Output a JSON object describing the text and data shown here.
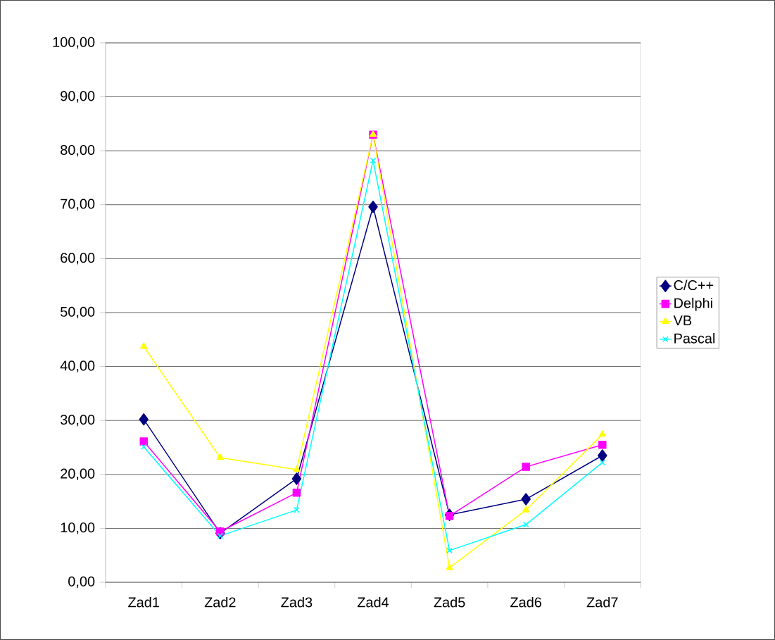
{
  "chart_data": {
    "type": "line",
    "categories": [
      "Zad1",
      "Zad2",
      "Zad3",
      "Zad4",
      "Zad5",
      "Zad6",
      "Zad7"
    ],
    "series": [
      {
        "name": "C/C++",
        "color": "#000080",
        "marker": "diamond",
        "values": [
          30.2,
          9.1,
          19.2,
          69.6,
          12.5,
          15.4,
          23.5
        ]
      },
      {
        "name": "Delphi",
        "color": "#ff00ff",
        "marker": "square",
        "values": [
          26.1,
          9.4,
          16.6,
          83.0,
          12.3,
          21.4,
          25.5
        ]
      },
      {
        "name": "VB",
        "color": "#ffff00",
        "marker": "triangle",
        "values": [
          43.7,
          23.1,
          20.9,
          83.0,
          2.7,
          13.4,
          27.4
        ]
      },
      {
        "name": "Pascal",
        "color": "#00ffff",
        "marker": "cross",
        "values": [
          25.1,
          8.6,
          13.4,
          78.2,
          5.9,
          10.7,
          22.2
        ]
      }
    ],
    "ylim": [
      0,
      100
    ],
    "yticks": [
      {
        "value": 0,
        "label": "0,00"
      },
      {
        "value": 10,
        "label": "10,00"
      },
      {
        "value": 20,
        "label": "20,00"
      },
      {
        "value": 30,
        "label": "30,00"
      },
      {
        "value": 40,
        "label": "40,00"
      },
      {
        "value": 50,
        "label": "50,00"
      },
      {
        "value": 60,
        "label": "60,00"
      },
      {
        "value": 70,
        "label": "70,00"
      },
      {
        "value": 80,
        "label": "80,00"
      },
      {
        "value": 90,
        "label": "90,00"
      },
      {
        "value": 100,
        "label": "100,00"
      }
    ],
    "grid": "y",
    "legend": "right",
    "line_style": "solid"
  }
}
